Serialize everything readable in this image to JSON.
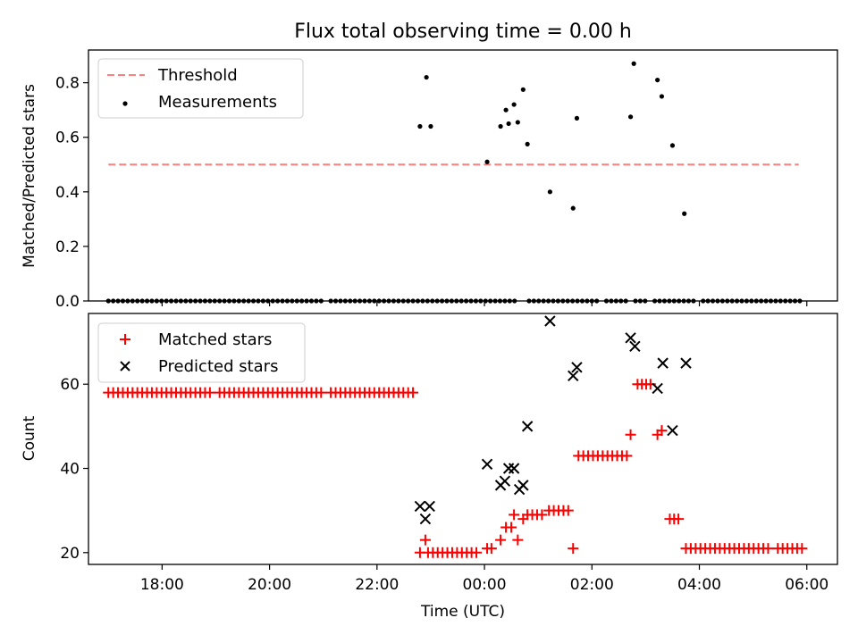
{
  "chart_data": [
    {
      "type": "scatter",
      "title": "Flux total observing time = 0.00 h",
      "xlabel": "",
      "ylabel": "Matched/Predicted stars",
      "xlim": [
        16.63,
        30.57
      ],
      "ylim": [
        0.0,
        0.92
      ],
      "yticks": [
        0.0,
        0.2,
        0.4,
        0.6,
        0.8
      ],
      "ytick_labels": [
        "0.0",
        "0.2",
        "0.4",
        "0.6",
        "0.8"
      ],
      "xticks": [
        18,
        20,
        22,
        24,
        26,
        28,
        30
      ],
      "show_xtick_labels": false,
      "grid": false,
      "legend_placement": "upper-left",
      "threshold": {
        "name": "Threshold",
        "y": 0.5,
        "x_range": [
          17.0,
          29.85
        ],
        "color": "#ff7f7f",
        "style": "dashed"
      },
      "series": [
        {
          "name": "Measurements",
          "color": "#000000",
          "marker": "dot",
          "zeros": {
            "y": 0.0,
            "x_start": 17.0,
            "x_end": 29.95,
            "step": 0.09,
            "gaps": [
              [
                21.0,
                21.13
              ],
              [
                23.22,
                23.28
              ],
              [
                24.62,
                24.78
              ],
              [
                26.1,
                26.18
              ],
              [
                26.65,
                26.72
              ],
              [
                27.05,
                27.12
              ],
              [
                27.62,
                27.68
              ],
              [
                27.95,
                28.02
              ]
            ]
          },
          "points": [
            {
              "x": 22.8,
              "y": 0.64
            },
            {
              "x": 22.92,
              "y": 0.82
            },
            {
              "x": 23.0,
              "y": 0.64
            },
            {
              "x": 24.05,
              "y": 0.51
            },
            {
              "x": 24.3,
              "y": 0.64
            },
            {
              "x": 24.4,
              "y": 0.7
            },
            {
              "x": 24.45,
              "y": 0.65
            },
            {
              "x": 24.55,
              "y": 0.72
            },
            {
              "x": 24.62,
              "y": 0.655
            },
            {
              "x": 24.72,
              "y": 0.775
            },
            {
              "x": 24.8,
              "y": 0.575
            },
            {
              "x": 25.22,
              "y": 0.4
            },
            {
              "x": 25.65,
              "y": 0.34
            },
            {
              "x": 25.72,
              "y": 0.67
            },
            {
              "x": 26.72,
              "y": 0.675
            },
            {
              "x": 26.78,
              "y": 0.87
            },
            {
              "x": 27.22,
              "y": 0.81
            },
            {
              "x": 27.3,
              "y": 0.75
            },
            {
              "x": 27.5,
              "y": 0.57
            },
            {
              "x": 27.72,
              "y": 0.32
            }
          ]
        }
      ]
    },
    {
      "type": "scatter",
      "title": "",
      "xlabel": "Time (UTC)",
      "ylabel": "Count",
      "xlim": [
        16.63,
        30.57
      ],
      "ylim": [
        17.2,
        76.8
      ],
      "yticks": [
        20,
        40,
        60
      ],
      "ytick_labels": [
        "20",
        "40",
        "60"
      ],
      "xticks": [
        18,
        20,
        22,
        24,
        26,
        28,
        30
      ],
      "xtick_labels": [
        "18:00",
        "20:00",
        "22:00",
        "00:00",
        "02:00",
        "04:00",
        "06:00"
      ],
      "grid": false,
      "legend_placement": "upper-left",
      "series": [
        {
          "name": "Matched stars",
          "color": "#ff0000",
          "marker": "plus",
          "runs": [
            {
              "y": 58,
              "x_start": 17.0,
              "x_end": 22.75,
              "step": 0.09,
              "gaps": [
                [
                  18.95,
                  19.05
                ],
                [
                  21.0,
                  21.13
                ]
              ]
            },
            {
              "y": 20,
              "x_start": 22.95,
              "x_end": 23.85,
              "step": 0.09
            },
            {
              "y": 21,
              "x_start": 24.05,
              "x_end": 24.2,
              "step": 0.08
            },
            {
              "y": 29,
              "x_start": 24.8,
              "x_end": 25.15,
              "step": 0.09
            },
            {
              "y": 30,
              "x_start": 25.2,
              "x_end": 25.6,
              "step": 0.09
            },
            {
              "y": 43,
              "x_start": 25.75,
              "x_end": 26.65,
              "step": 0.09
            },
            {
              "y": 60,
              "x_start": 26.85,
              "x_end": 27.15,
              "step": 0.08
            },
            {
              "y": 28,
              "x_start": 27.45,
              "x_end": 27.65,
              "step": 0.08
            },
            {
              "y": 21,
              "x_start": 27.75,
              "x_end": 29.95,
              "step": 0.09,
              "gaps": [
                [
                  29.35,
                  29.4
                ]
              ]
            }
          ],
          "points": [
            {
              "x": 22.8,
              "y": 20
            },
            {
              "x": 22.9,
              "y": 23
            },
            {
              "x": 24.3,
              "y": 23
            },
            {
              "x": 24.4,
              "y": 26
            },
            {
              "x": 24.5,
              "y": 26
            },
            {
              "x": 24.55,
              "y": 29
            },
            {
              "x": 24.62,
              "y": 23
            },
            {
              "x": 24.72,
              "y": 28
            },
            {
              "x": 25.65,
              "y": 21
            },
            {
              "x": 26.72,
              "y": 48
            },
            {
              "x": 27.22,
              "y": 48
            },
            {
              "x": 27.3,
              "y": 49
            }
          ]
        },
        {
          "name": "Predicted stars",
          "color": "#000000",
          "marker": "x",
          "points": [
            {
              "x": 22.8,
              "y": 31
            },
            {
              "x": 22.9,
              "y": 28
            },
            {
              "x": 22.98,
              "y": 31
            },
            {
              "x": 24.05,
              "y": 41
            },
            {
              "x": 24.3,
              "y": 36
            },
            {
              "x": 24.38,
              "y": 37
            },
            {
              "x": 24.45,
              "y": 40
            },
            {
              "x": 24.55,
              "y": 40
            },
            {
              "x": 24.65,
              "y": 35
            },
            {
              "x": 24.72,
              "y": 36
            },
            {
              "x": 24.8,
              "y": 50
            },
            {
              "x": 25.22,
              "y": 75
            },
            {
              "x": 25.65,
              "y": 62
            },
            {
              "x": 25.72,
              "y": 64
            },
            {
              "x": 26.72,
              "y": 71
            },
            {
              "x": 26.8,
              "y": 69
            },
            {
              "x": 27.22,
              "y": 59
            },
            {
              "x": 27.32,
              "y": 65
            },
            {
              "x": 27.5,
              "y": 49
            },
            {
              "x": 27.75,
              "y": 65
            }
          ]
        }
      ]
    }
  ]
}
